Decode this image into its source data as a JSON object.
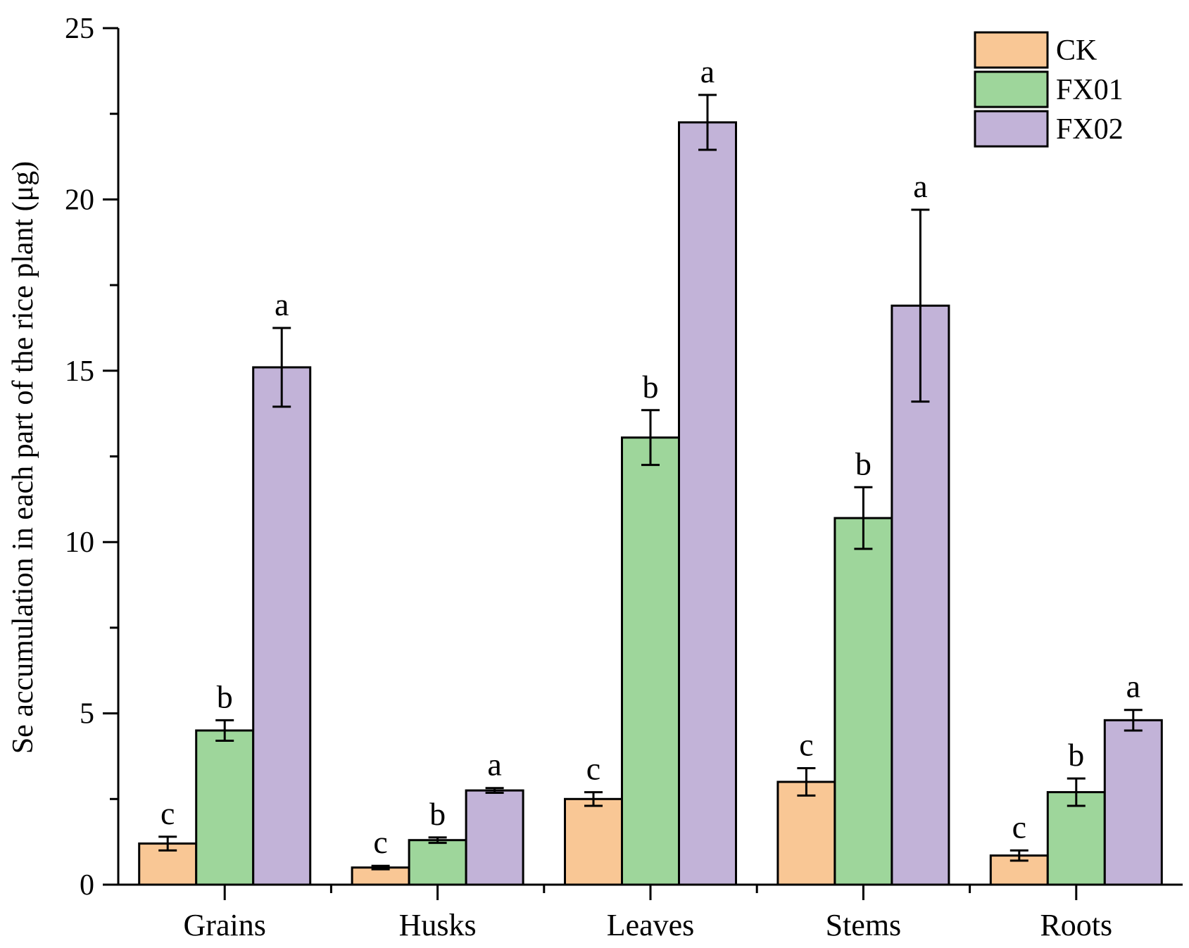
{
  "chart_data": {
    "type": "bar",
    "title": "",
    "xlabel": "",
    "ylabel": "Se accumulation in each part of the rice plant (μg)",
    "ylim": [
      0,
      25
    ],
    "yticks": [
      0,
      5,
      10,
      15,
      20,
      25
    ],
    "categories": [
      "Grains",
      "Husks",
      "Leaves",
      "Stems",
      "Roots"
    ],
    "legend_position": "top-right",
    "grid": false,
    "series": [
      {
        "name": "CK",
        "color": "#F9C795",
        "values": [
          1.2,
          0.5,
          2.5,
          3.0,
          0.85
        ],
        "errors": [
          0.2,
          0.05,
          0.2,
          0.4,
          0.15
        ],
        "letters": [
          "c",
          "c",
          "c",
          "c",
          "c"
        ]
      },
      {
        "name": "FX01",
        "color": "#9ED69B",
        "values": [
          4.5,
          1.3,
          13.05,
          10.7,
          2.7
        ],
        "errors": [
          0.3,
          0.08,
          0.8,
          0.9,
          0.4
        ],
        "letters": [
          "b",
          "b",
          "b",
          "b",
          "b"
        ]
      },
      {
        "name": "FX02",
        "color": "#C2B3D8",
        "values": [
          15.1,
          2.75,
          22.25,
          16.9,
          4.8
        ],
        "errors": [
          1.15,
          0.07,
          0.8,
          2.8,
          0.3
        ],
        "letters": [
          "a",
          "a",
          "a",
          "a",
          "a"
        ]
      }
    ]
  }
}
